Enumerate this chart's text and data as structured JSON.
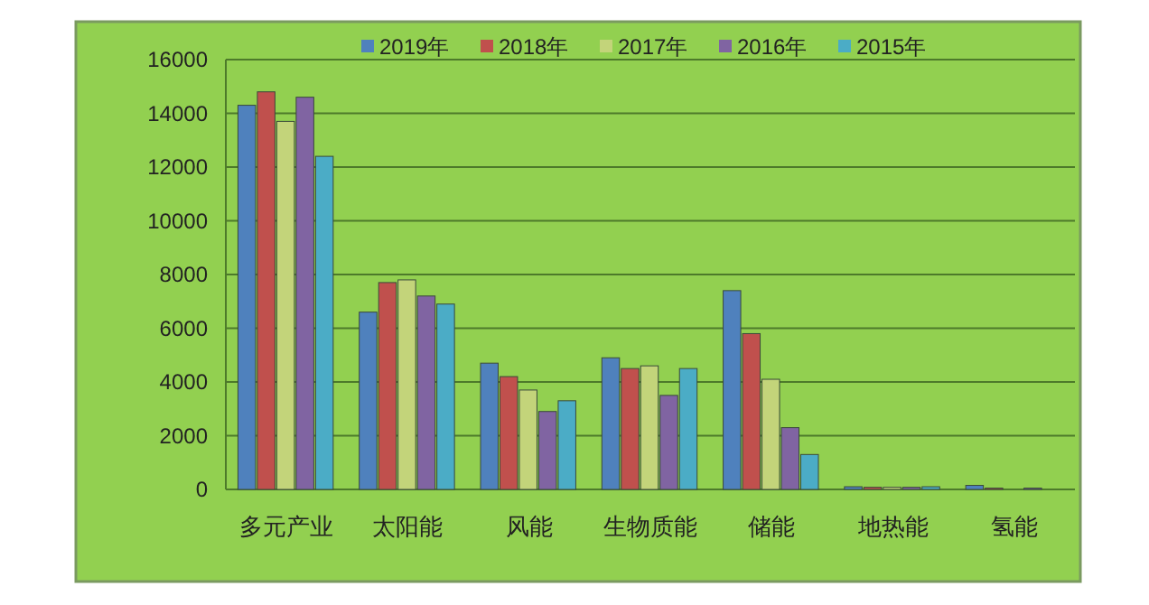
{
  "chart_data": {
    "type": "bar",
    "categories": [
      "多元产业",
      "太阳能",
      "风能",
      "生物质能",
      "储能",
      "地热能",
      "氢能"
    ],
    "series": [
      {
        "name": "2019年",
        "color": "#4f81bd",
        "values": [
          14300,
          6600,
          4700,
          4900,
          7400,
          100,
          150
        ]
      },
      {
        "name": "2018年",
        "color": "#c0504d",
        "values": [
          14800,
          7700,
          4200,
          4500,
          5800,
          80,
          50
        ]
      },
      {
        "name": "2017年",
        "color": "#c3d47a",
        "values": [
          13700,
          7800,
          3700,
          4600,
          4100,
          80,
          null
        ]
      },
      {
        "name": "2016年",
        "color": "#8064a2",
        "values": [
          14600,
          7200,
          2900,
          3500,
          2300,
          80,
          50
        ]
      },
      {
        "name": "2015年",
        "color": "#4bacc6",
        "values": [
          12400,
          6900,
          3300,
          4500,
          1300,
          100,
          null
        ]
      }
    ],
    "ylim": [
      0,
      16000
    ],
    "yticks": [
      0,
      2000,
      4000,
      6000,
      8000,
      10000,
      12000,
      14000,
      16000
    ],
    "grid": "y",
    "legend": "top"
  }
}
